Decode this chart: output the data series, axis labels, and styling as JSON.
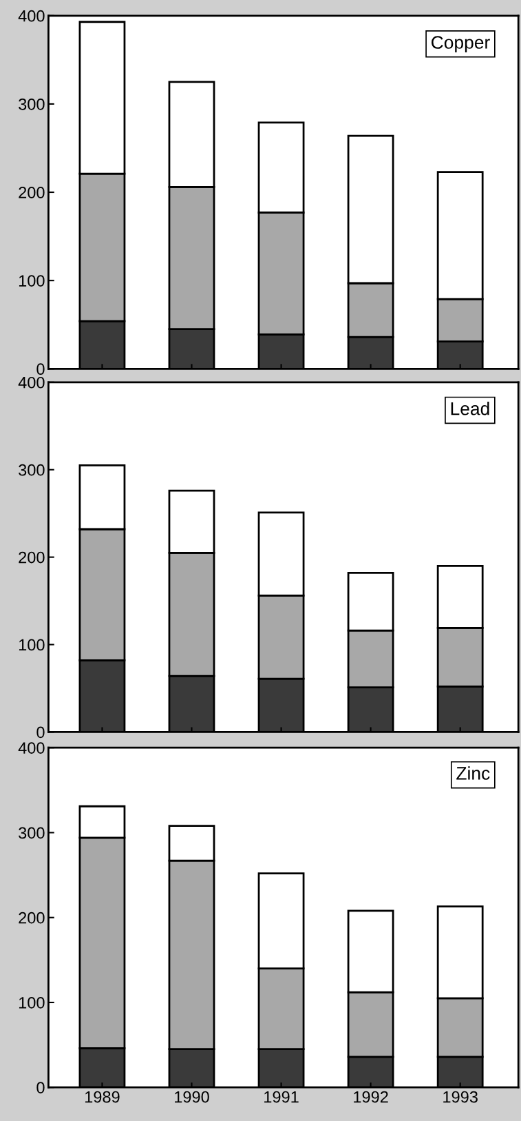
{
  "chart_data": [
    {
      "type": "bar",
      "title": "Copper",
      "stacked": true,
      "categories": [
        "1989",
        "1990",
        "1991",
        "1992",
        "1993"
      ],
      "ylim": [
        0,
        400
      ],
      "yticks": [
        0,
        100,
        200,
        300,
        400
      ],
      "tick_labels": "y",
      "grid": false,
      "legend": false,
      "series": [
        {
          "color": "#3a3a3a",
          "values": [
            54,
            45,
            39,
            36,
            31
          ]
        },
        {
          "color": "#a8a8a8",
          "values": [
            167,
            161,
            138,
            61,
            48
          ]
        },
        {
          "color": "#ffffff",
          "values": [
            172,
            119,
            102,
            167,
            144
          ]
        }
      ]
    },
    {
      "type": "bar",
      "title": "Lead",
      "stacked": true,
      "categories": [
        "1989",
        "1990",
        "1991",
        "1992",
        "1993"
      ],
      "ylim": [
        0,
        400
      ],
      "yticks": [
        0,
        100,
        200,
        300,
        400
      ],
      "tick_labels": "y",
      "grid": false,
      "legend": false,
      "series": [
        {
          "color": "#3a3a3a",
          "values": [
            82,
            64,
            61,
            51,
            52
          ]
        },
        {
          "color": "#a8a8a8",
          "values": [
            150,
            141,
            95,
            65,
            67
          ]
        },
        {
          "color": "#ffffff",
          "values": [
            73,
            71,
            95,
            66,
            71
          ]
        }
      ]
    },
    {
      "type": "bar",
      "title": "Zinc",
      "stacked": true,
      "categories": [
        "1989",
        "1990",
        "1991",
        "1992",
        "1993"
      ],
      "ylim": [
        0,
        400
      ],
      "yticks": [
        0,
        100,
        200,
        300,
        400
      ],
      "grid": false,
      "legend": false,
      "series": [
        {
          "color": "#3a3a3a",
          "values": [
            46,
            45,
            45,
            36,
            36
          ]
        },
        {
          "color": "#a8a8a8",
          "values": [
            248,
            222,
            95,
            76,
            69
          ]
        },
        {
          "color": "#ffffff",
          "values": [
            37,
            41,
            112,
            96,
            108
          ]
        }
      ]
    }
  ]
}
